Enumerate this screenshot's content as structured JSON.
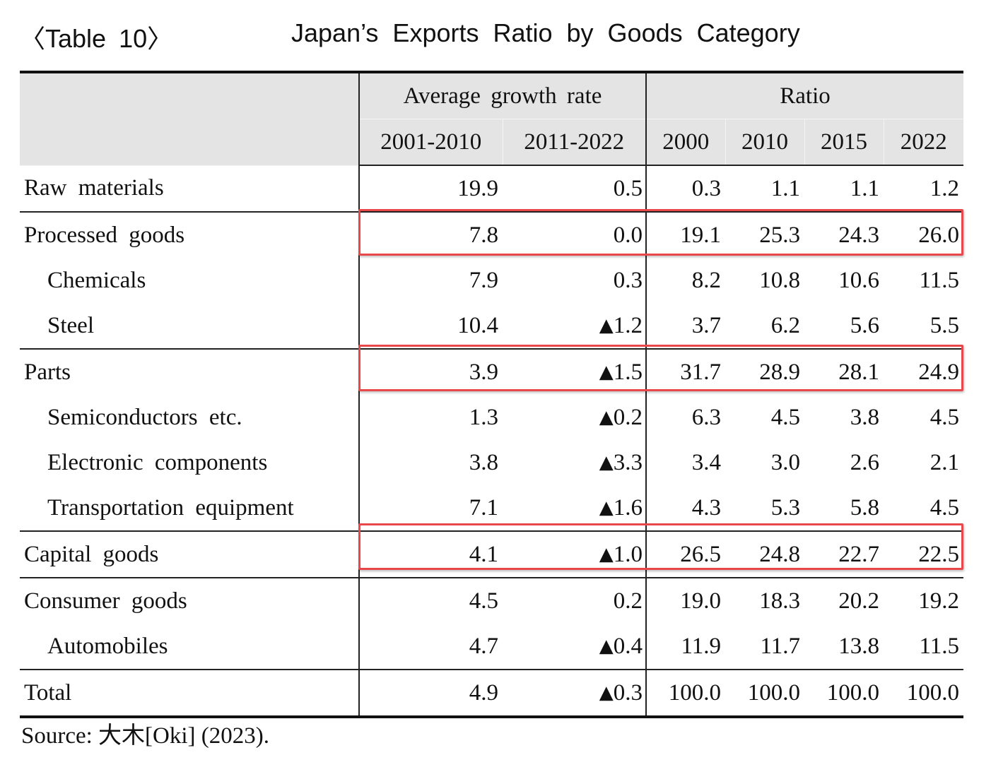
{
  "title": {
    "label": "〈Table 10〉",
    "text": "Japan’s Exports Ratio by Goods Category"
  },
  "header": {
    "stub": "",
    "groups": [
      {
        "label": "Average growth rate",
        "columns": [
          "2001-2010",
          "2011-2022"
        ]
      },
      {
        "label": "Ratio",
        "columns": [
          "2000",
          "2010",
          "2015",
          "2022"
        ]
      }
    ]
  },
  "negative_marker": "▲",
  "rows": [
    {
      "label": "Raw materials",
      "level": 0,
      "growth": [
        "19.9",
        "0.5"
      ],
      "ratio": [
        "0.3",
        "1.1",
        "1.1",
        "1.2"
      ],
      "highlighted": false
    },
    {
      "label": "Processed goods",
      "level": 0,
      "growth": [
        "7.8",
        "0.0"
      ],
      "ratio": [
        "19.1",
        "25.3",
        "24.3",
        "26.0"
      ],
      "highlighted": true
    },
    {
      "label": "Chemicals",
      "level": 1,
      "growth": [
        "7.9",
        "0.3"
      ],
      "ratio": [
        "8.2",
        "10.8",
        "10.6",
        "11.5"
      ],
      "highlighted": false
    },
    {
      "label": "Steel",
      "level": 1,
      "growth": [
        "10.4",
        "▲1.2"
      ],
      "ratio": [
        "3.7",
        "6.2",
        "5.6",
        "5.5"
      ],
      "highlighted": false
    },
    {
      "label": "Parts",
      "level": 0,
      "growth": [
        "3.9",
        "▲1.5"
      ],
      "ratio": [
        "31.7",
        "28.9",
        "28.1",
        "24.9"
      ],
      "highlighted": true
    },
    {
      "label": "Semiconductors etc.",
      "level": 1,
      "growth": [
        "1.3",
        "▲0.2"
      ],
      "ratio": [
        "6.3",
        "4.5",
        "3.8",
        "4.5"
      ],
      "highlighted": false
    },
    {
      "label": "Electronic components",
      "level": 1,
      "growth": [
        "3.8",
        "▲3.3"
      ],
      "ratio": [
        "3.4",
        "3.0",
        "2.6",
        "2.1"
      ],
      "highlighted": false
    },
    {
      "label": "Transportation equipment",
      "level": 1,
      "growth": [
        "7.1",
        "▲1.6"
      ],
      "ratio": [
        "4.3",
        "5.3",
        "5.8",
        "4.5"
      ],
      "highlighted": false
    },
    {
      "label": "Capital goods",
      "level": 0,
      "growth": [
        "4.1",
        "▲1.0"
      ],
      "ratio": [
        "26.5",
        "24.8",
        "22.7",
        "22.5"
      ],
      "highlighted": true
    },
    {
      "label": "Consumer goods",
      "level": 0,
      "growth": [
        "4.5",
        "0.2"
      ],
      "ratio": [
        "19.0",
        "18.3",
        "20.2",
        "19.2"
      ],
      "highlighted": false
    },
    {
      "label": "Automobiles",
      "level": 1,
      "growth": [
        "4.7",
        "▲0.4"
      ],
      "ratio": [
        "11.9",
        "11.7",
        "13.8",
        "11.5"
      ],
      "highlighted": false
    },
    {
      "label": "Total",
      "level": 0,
      "growth": [
        "4.9",
        "▲0.3"
      ],
      "ratio": [
        "100.0",
        "100.0",
        "100.0",
        "100.0"
      ],
      "highlighted": false
    }
  ],
  "highlight_color": "#e8474b",
  "header_background": "#e4e4e4",
  "source": "Source: 大木[Oki] (2023)."
}
